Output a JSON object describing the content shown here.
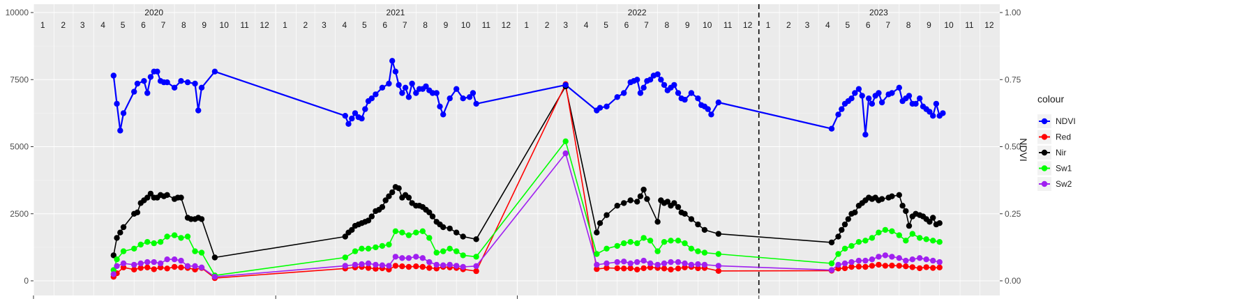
{
  "chart_data": {
    "type": "line",
    "title": "",
    "xlabel": "",
    "ylabel": "",
    "y2label": "NDVI",
    "ylim": [
      0,
      10000
    ],
    "y2lim": [
      0,
      1
    ],
    "yticks": [
      0,
      2500,
      5000,
      7500,
      10000
    ],
    "yticklabels": [
      "0",
      "2500",
      "5000",
      "7500",
      "10000"
    ],
    "y2ticks": [
      0,
      0.25,
      0.5,
      0.75,
      1.0
    ],
    "y2ticklabels": [
      "0.00",
      "0.25",
      "0.50",
      "0.75",
      "1.00"
    ],
    "xlim": [
      "2020-01-01",
      "2023-12-31"
    ],
    "years": [
      "2020",
      "2021",
      "2022",
      "2023"
    ],
    "months": [
      "1",
      "2",
      "3",
      "4",
      "5",
      "6",
      "7",
      "8",
      "9",
      "10",
      "11",
      "12"
    ],
    "vline": "2023-01-01",
    "legend_title": "colour",
    "legend_position": "right",
    "grid": true,
    "series": [
      {
        "name": "NDVI",
        "color": "#0000ff",
        "axis": "y2",
        "x": [
          "2020-05-01",
          "2020-05-06",
          "2020-05-11",
          "2020-05-16",
          "2020-06-01",
          "2020-06-06",
          "2020-06-16",
          "2020-06-21",
          "2020-06-26",
          "2020-07-01",
          "2020-07-06",
          "2020-07-11",
          "2020-07-16",
          "2020-07-21",
          "2020-08-01",
          "2020-08-11",
          "2020-08-21",
          "2020-09-01",
          "2020-09-06",
          "2020-09-11",
          "2020-10-01",
          "2021-04-16",
          "2021-04-21",
          "2021-04-26",
          "2021-05-01",
          "2021-05-06",
          "2021-05-11",
          "2021-05-16",
          "2021-05-21",
          "2021-05-26",
          "2021-06-01",
          "2021-06-11",
          "2021-06-21",
          "2021-06-26",
          "2021-07-01",
          "2021-07-06",
          "2021-07-11",
          "2021-07-16",
          "2021-07-21",
          "2021-07-26",
          "2021-08-01",
          "2021-08-06",
          "2021-08-11",
          "2021-08-16",
          "2021-08-21",
          "2021-08-26",
          "2021-09-01",
          "2021-09-06",
          "2021-09-11",
          "2021-09-21",
          "2021-10-01",
          "2021-10-11",
          "2021-10-21",
          "2021-10-26",
          "2021-10-31",
          "2022-03-15",
          "2022-05-01",
          "2022-05-06",
          "2022-05-16",
          "2022-06-01",
          "2022-06-11",
          "2022-06-21",
          "2022-06-26",
          "2022-07-01",
          "2022-07-06",
          "2022-07-11",
          "2022-07-16",
          "2022-07-21",
          "2022-07-26",
          "2022-08-01",
          "2022-08-06",
          "2022-08-11",
          "2022-08-16",
          "2022-08-21",
          "2022-08-26",
          "2022-09-01",
          "2022-09-06",
          "2022-09-11",
          "2022-09-21",
          "2022-10-01",
          "2022-10-06",
          "2022-10-11",
          "2022-10-16",
          "2022-10-21",
          "2022-11-01",
          "2023-04-21",
          "2023-05-01",
          "2023-05-06",
          "2023-05-11",
          "2023-05-16",
          "2023-05-21",
          "2023-05-26",
          "2023-06-01",
          "2023-06-06",
          "2023-06-11",
          "2023-06-16",
          "2023-06-21",
          "2023-06-26",
          "2023-07-01",
          "2023-07-06",
          "2023-07-16",
          "2023-07-21",
          "2023-08-01",
          "2023-08-06",
          "2023-08-11",
          "2023-08-16",
          "2023-08-21",
          "2023-08-26",
          "2023-09-01",
          "2023-09-06",
          "2023-09-11",
          "2023-09-16",
          "2023-09-21",
          "2023-09-26",
          "2023-10-01",
          "2023-10-06"
        ],
        "y": [
          0.765,
          0.66,
          0.56,
          0.625,
          0.705,
          0.735,
          0.745,
          0.7,
          0.76,
          0.78,
          0.78,
          0.745,
          0.74,
          0.74,
          0.72,
          0.745,
          0.74,
          0.735,
          0.635,
          0.72,
          0.78,
          0.615,
          0.585,
          0.605,
          0.625,
          0.61,
          0.605,
          0.64,
          0.67,
          0.68,
          0.695,
          0.72,
          0.735,
          0.82,
          0.78,
          0.73,
          0.7,
          0.72,
          0.685,
          0.735,
          0.7,
          0.715,
          0.715,
          0.725,
          0.71,
          0.7,
          0.7,
          0.65,
          0.62,
          0.68,
          0.715,
          0.68,
          0.685,
          0.7,
          0.66,
          0.73,
          0.635,
          0.645,
          0.65,
          0.685,
          0.7,
          0.74,
          0.745,
          0.75,
          0.7,
          0.72,
          0.745,
          0.75,
          0.765,
          0.77,
          0.75,
          0.73,
          0.71,
          0.72,
          0.73,
          0.7,
          0.68,
          0.675,
          0.7,
          0.68,
          0.655,
          0.65,
          0.64,
          0.62,
          0.665,
          0.567,
          0.62,
          0.64,
          0.66,
          0.67,
          0.68,
          0.7,
          0.715,
          0.69,
          0.545,
          0.68,
          0.66,
          0.69,
          0.7,
          0.665,
          0.695,
          0.7,
          0.72,
          0.67,
          0.68,
          0.69,
          0.66,
          0.66,
          0.68,
          0.65,
          0.64,
          0.63,
          0.615,
          0.66,
          0.615,
          0.625
        ]
      },
      {
        "name": "Red",
        "color": "#ff0000",
        "axis": "y",
        "x": [
          "2020-05-01",
          "2020-05-06",
          "2020-05-16",
          "2020-06-01",
          "2020-06-11",
          "2020-06-21",
          "2020-07-01",
          "2020-07-11",
          "2020-07-21",
          "2020-08-01",
          "2020-08-11",
          "2020-08-21",
          "2020-09-01",
          "2020-09-11",
          "2020-10-01",
          "2021-04-16",
          "2021-05-01",
          "2021-05-11",
          "2021-05-21",
          "2021-06-01",
          "2021-06-11",
          "2021-06-21",
          "2021-07-01",
          "2021-07-11",
          "2021-07-21",
          "2021-08-01",
          "2021-08-11",
          "2021-08-21",
          "2021-09-01",
          "2021-09-11",
          "2021-09-21",
          "2021-10-01",
          "2021-10-11",
          "2021-10-31",
          "2022-03-15",
          "2022-05-01",
          "2022-05-16",
          "2022-06-01",
          "2022-06-11",
          "2022-06-21",
          "2022-07-01",
          "2022-07-11",
          "2022-07-21",
          "2022-08-01",
          "2022-08-11",
          "2022-08-21",
          "2022-09-01",
          "2022-09-11",
          "2022-09-21",
          "2022-10-01",
          "2022-10-11",
          "2022-11-01",
          "2023-04-21",
          "2023-05-01",
          "2023-05-11",
          "2023-05-21",
          "2023-06-01",
          "2023-06-11",
          "2023-06-21",
          "2023-07-01",
          "2023-07-11",
          "2023-07-21",
          "2023-08-01",
          "2023-08-11",
          "2023-08-21",
          "2023-09-01",
          "2023-09-11",
          "2023-09-21",
          "2023-10-01"
        ],
        "y": [
          150,
          280,
          500,
          420,
          480,
          500,
          430,
          500,
          460,
          520,
          500,
          480,
          420,
          480,
          100,
          460,
          500,
          520,
          480,
          450,
          470,
          420,
          560,
          540,
          520,
          540,
          520,
          480,
          460,
          520,
          500,
          480,
          430,
          360,
          7330,
          440,
          480,
          470,
          460,
          470,
          420,
          470,
          500,
          480,
          460,
          420,
          460,
          500,
          520,
          470,
          480,
          370,
          380,
          460,
          470,
          520,
          530,
          520,
          560,
          600,
          560,
          570,
          560,
          540,
          510,
          470,
          510,
          480,
          500
        ]
      },
      {
        "name": "Nir",
        "color": "#000000",
        "axis": "y",
        "x": [
          "2020-05-01",
          "2020-05-06",
          "2020-05-11",
          "2020-05-16",
          "2020-06-01",
          "2020-06-06",
          "2020-06-11",
          "2020-06-16",
          "2020-06-21",
          "2020-06-26",
          "2020-07-01",
          "2020-07-06",
          "2020-07-11",
          "2020-07-16",
          "2020-07-21",
          "2020-08-01",
          "2020-08-06",
          "2020-08-11",
          "2020-08-21",
          "2020-08-26",
          "2020-09-01",
          "2020-09-06",
          "2020-09-11",
          "2020-10-01",
          "2021-04-16",
          "2021-04-21",
          "2021-04-26",
          "2021-05-01",
          "2021-05-06",
          "2021-05-11",
          "2021-05-16",
          "2021-05-21",
          "2021-05-26",
          "2021-06-01",
          "2021-06-06",
          "2021-06-11",
          "2021-06-16",
          "2021-06-21",
          "2021-06-26",
          "2021-07-01",
          "2021-07-06",
          "2021-07-11",
          "2021-07-16",
          "2021-07-21",
          "2021-07-26",
          "2021-08-01",
          "2021-08-06",
          "2021-08-11",
          "2021-08-16",
          "2021-08-21",
          "2021-08-26",
          "2021-09-01",
          "2021-09-06",
          "2021-09-11",
          "2021-09-21",
          "2021-10-01",
          "2021-10-11",
          "2021-10-31",
          "2022-03-15",
          "2022-05-01",
          "2022-05-06",
          "2022-05-16",
          "2022-06-01",
          "2022-06-11",
          "2022-06-21",
          "2022-07-01",
          "2022-07-06",
          "2022-07-11",
          "2022-07-16",
          "2022-08-01",
          "2022-08-06",
          "2022-08-11",
          "2022-08-16",
          "2022-08-21",
          "2022-08-26",
          "2022-09-01",
          "2022-09-06",
          "2022-09-11",
          "2022-09-21",
          "2022-10-01",
          "2022-10-11",
          "2022-11-01",
          "2023-04-21",
          "2023-05-01",
          "2023-05-06",
          "2023-05-11",
          "2023-05-16",
          "2023-05-21",
          "2023-05-26",
          "2023-06-01",
          "2023-06-06",
          "2023-06-11",
          "2023-06-16",
          "2023-06-21",
          "2023-06-26",
          "2023-07-01",
          "2023-07-06",
          "2023-07-16",
          "2023-07-21",
          "2023-08-01",
          "2023-08-06",
          "2023-08-11",
          "2023-08-16",
          "2023-08-21",
          "2023-08-26",
          "2023-09-01",
          "2023-09-06",
          "2023-09-11",
          "2023-09-16",
          "2023-09-21",
          "2023-09-26",
          "2023-10-01"
        ],
        "y": [
          950,
          1600,
          1800,
          2000,
          2500,
          2550,
          2900,
          3000,
          3100,
          3250,
          3100,
          3100,
          3200,
          3150,
          3200,
          3050,
          3100,
          3100,
          2350,
          2300,
          2300,
          2350,
          2300,
          870,
          1650,
          1800,
          1900,
          2050,
          2100,
          2150,
          2200,
          2250,
          2400,
          2600,
          2650,
          2750,
          3000,
          3150,
          3300,
          3500,
          3450,
          3100,
          3200,
          3100,
          2900,
          2800,
          2800,
          2750,
          2650,
          2550,
          2400,
          2200,
          2100,
          2000,
          1950,
          1800,
          1650,
          1550,
          7250,
          1800,
          2150,
          2450,
          2800,
          2900,
          3000,
          2950,
          3150,
          3400,
          3050,
          2200,
          3000,
          2900,
          2950,
          2800,
          2900,
          2750,
          2550,
          2500,
          2300,
          2100,
          1900,
          1750,
          1430,
          1650,
          1900,
          2100,
          2300,
          2500,
          2550,
          2800,
          2900,
          3000,
          3100,
          3050,
          3100,
          3000,
          3050,
          3100,
          3150,
          3200,
          2800,
          2600,
          2050,
          2400,
          2500,
          2450,
          2400,
          2300,
          2200,
          2350,
          2100,
          2150
        ]
      },
      {
        "name": "Sw1",
        "color": "#00ff00",
        "axis": "y",
        "x": [
          "2020-05-01",
          "2020-05-06",
          "2020-05-16",
          "2020-06-01",
          "2020-06-11",
          "2020-06-21",
          "2020-07-01",
          "2020-07-11",
          "2020-07-21",
          "2020-08-01",
          "2020-08-11",
          "2020-08-21",
          "2020-09-01",
          "2020-09-11",
          "2020-10-01",
          "2021-04-16",
          "2021-05-01",
          "2021-05-11",
          "2021-05-21",
          "2021-06-01",
          "2021-06-11",
          "2021-06-21",
          "2021-07-01",
          "2021-07-11",
          "2021-07-21",
          "2021-08-01",
          "2021-08-11",
          "2021-08-21",
          "2021-09-01",
          "2021-09-11",
          "2021-09-21",
          "2021-10-01",
          "2021-10-11",
          "2021-10-31",
          "2022-03-15",
          "2022-05-01",
          "2022-05-16",
          "2022-06-01",
          "2022-06-11",
          "2022-06-21",
          "2022-07-01",
          "2022-07-11",
          "2022-07-21",
          "2022-08-01",
          "2022-08-11",
          "2022-08-21",
          "2022-09-01",
          "2022-09-11",
          "2022-09-21",
          "2022-10-01",
          "2022-10-11",
          "2022-11-01",
          "2023-04-21",
          "2023-05-01",
          "2023-05-11",
          "2023-05-21",
          "2023-06-01",
          "2023-06-11",
          "2023-06-21",
          "2023-07-01",
          "2023-07-11",
          "2023-07-21",
          "2023-08-01",
          "2023-08-11",
          "2023-08-21",
          "2023-09-01",
          "2023-09-11",
          "2023-09-21",
          "2023-10-01"
        ],
        "y": [
          400,
          800,
          1100,
          1200,
          1350,
          1450,
          1400,
          1450,
          1650,
          1700,
          1600,
          1650,
          1100,
          1050,
          200,
          870,
          1100,
          1200,
          1200,
          1250,
          1300,
          1350,
          1850,
          1800,
          1700,
          1800,
          1850,
          1600,
          1050,
          1100,
          1200,
          1100,
          950,
          900,
          5200,
          1000,
          1200,
          1300,
          1400,
          1450,
          1400,
          1600,
          1500,
          1100,
          1450,
          1500,
          1500,
          1400,
          1200,
          1100,
          1050,
          1000,
          650,
          1000,
          1200,
          1300,
          1450,
          1500,
          1600,
          1800,
          1900,
          1850,
          1700,
          1500,
          1750,
          1600,
          1550,
          1500,
          1450
        ]
      },
      {
        "name": "Sw2",
        "color": "#a020f0",
        "axis": "y",
        "x": [
          "2020-05-01",
          "2020-05-06",
          "2020-05-16",
          "2020-06-01",
          "2020-06-11",
          "2020-06-21",
          "2020-07-01",
          "2020-07-11",
          "2020-07-21",
          "2020-08-01",
          "2020-08-11",
          "2020-08-21",
          "2020-09-01",
          "2020-09-11",
          "2020-10-01",
          "2021-04-16",
          "2021-05-01",
          "2021-05-11",
          "2021-05-21",
          "2021-06-01",
          "2021-06-11",
          "2021-06-21",
          "2021-07-01",
          "2021-07-11",
          "2021-07-21",
          "2021-08-01",
          "2021-08-11",
          "2021-08-21",
          "2021-09-01",
          "2021-09-11",
          "2021-09-21",
          "2021-10-01",
          "2021-10-11",
          "2021-10-31",
          "2022-03-15",
          "2022-05-01",
          "2022-05-16",
          "2022-06-01",
          "2022-06-11",
          "2022-06-21",
          "2022-07-01",
          "2022-07-11",
          "2022-07-21",
          "2022-08-01",
          "2022-08-11",
          "2022-08-21",
          "2022-09-01",
          "2022-09-11",
          "2022-09-21",
          "2022-10-01",
          "2022-10-11",
          "2022-11-01",
          "2023-04-21",
          "2023-05-01",
          "2023-05-11",
          "2023-05-21",
          "2023-06-01",
          "2023-06-11",
          "2023-06-21",
          "2023-07-01",
          "2023-07-11",
          "2023-07-21",
          "2023-08-01",
          "2023-08-11",
          "2023-08-21",
          "2023-09-01",
          "2023-09-11",
          "2023-09-21",
          "2023-10-01"
        ],
        "y": [
          250,
          550,
          650,
          600,
          650,
          700,
          700,
          650,
          800,
          800,
          750,
          550,
          550,
          500,
          150,
          560,
          600,
          620,
          650,
          600,
          580,
          560,
          900,
          850,
          850,
          900,
          850,
          700,
          600,
          580,
          600,
          560,
          520,
          550,
          4750,
          600,
          650,
          700,
          720,
          650,
          700,
          750,
          650,
          600,
          650,
          700,
          700,
          650,
          600,
          620,
          600,
          560,
          400,
          600,
          650,
          700,
          750,
          750,
          800,
          900,
          950,
          900,
          850,
          750,
          800,
          850,
          800,
          750,
          700
        ]
      }
    ]
  }
}
